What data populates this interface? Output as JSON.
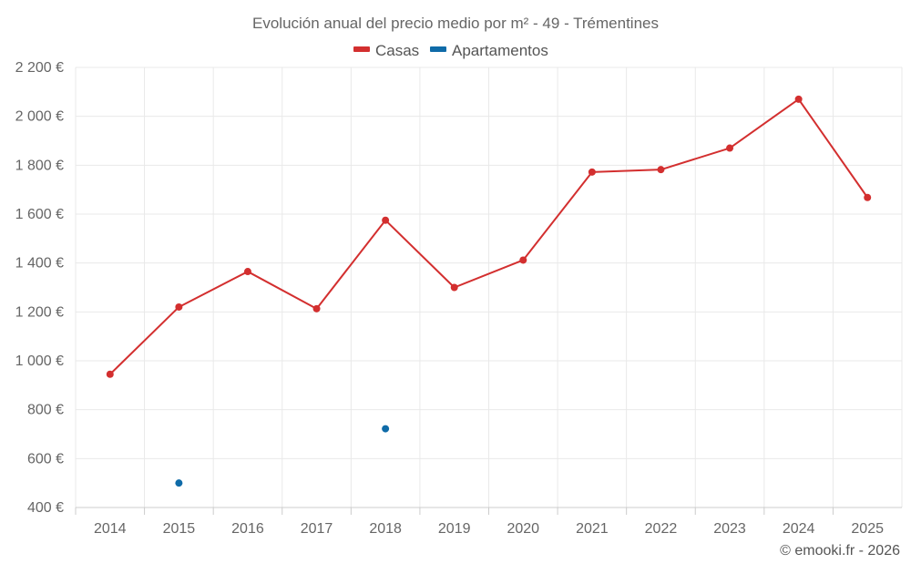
{
  "chart_data": {
    "type": "line",
    "title": "Evolución anual del precio medio por m² - 49 - Trémentines",
    "categories": [
      "2014",
      "2015",
      "2016",
      "2017",
      "2018",
      "2019",
      "2020",
      "2021",
      "2022",
      "2023",
      "2024",
      "2025"
    ],
    "series": [
      {
        "name": "Casas",
        "color": "#d32f2f",
        "values": [
          945,
          1220,
          1365,
          1213,
          1575,
          1300,
          1412,
          1772,
          1782,
          1870,
          2070,
          1668
        ]
      },
      {
        "name": "Apartamentos",
        "color": "#0f6ba8",
        "values": [
          null,
          500,
          null,
          null,
          722,
          null,
          null,
          null,
          null,
          null,
          null,
          null
        ]
      }
    ],
    "ylim": [
      400,
      2200
    ],
    "yticks": [
      400,
      600,
      800,
      1000,
      1200,
      1400,
      1600,
      1800,
      2000,
      2200
    ],
    "ytick_labels": [
      "400 €",
      "600 €",
      "800 €",
      "1 000 €",
      "1 200 €",
      "1 400 €",
      "1 600 €",
      "1 800 €",
      "2 000 €",
      "2 200 €"
    ],
    "xlabel": "",
    "ylabel": "",
    "grid": true,
    "legend": "top-center"
  },
  "credit": "© emooki.fr - 2026"
}
